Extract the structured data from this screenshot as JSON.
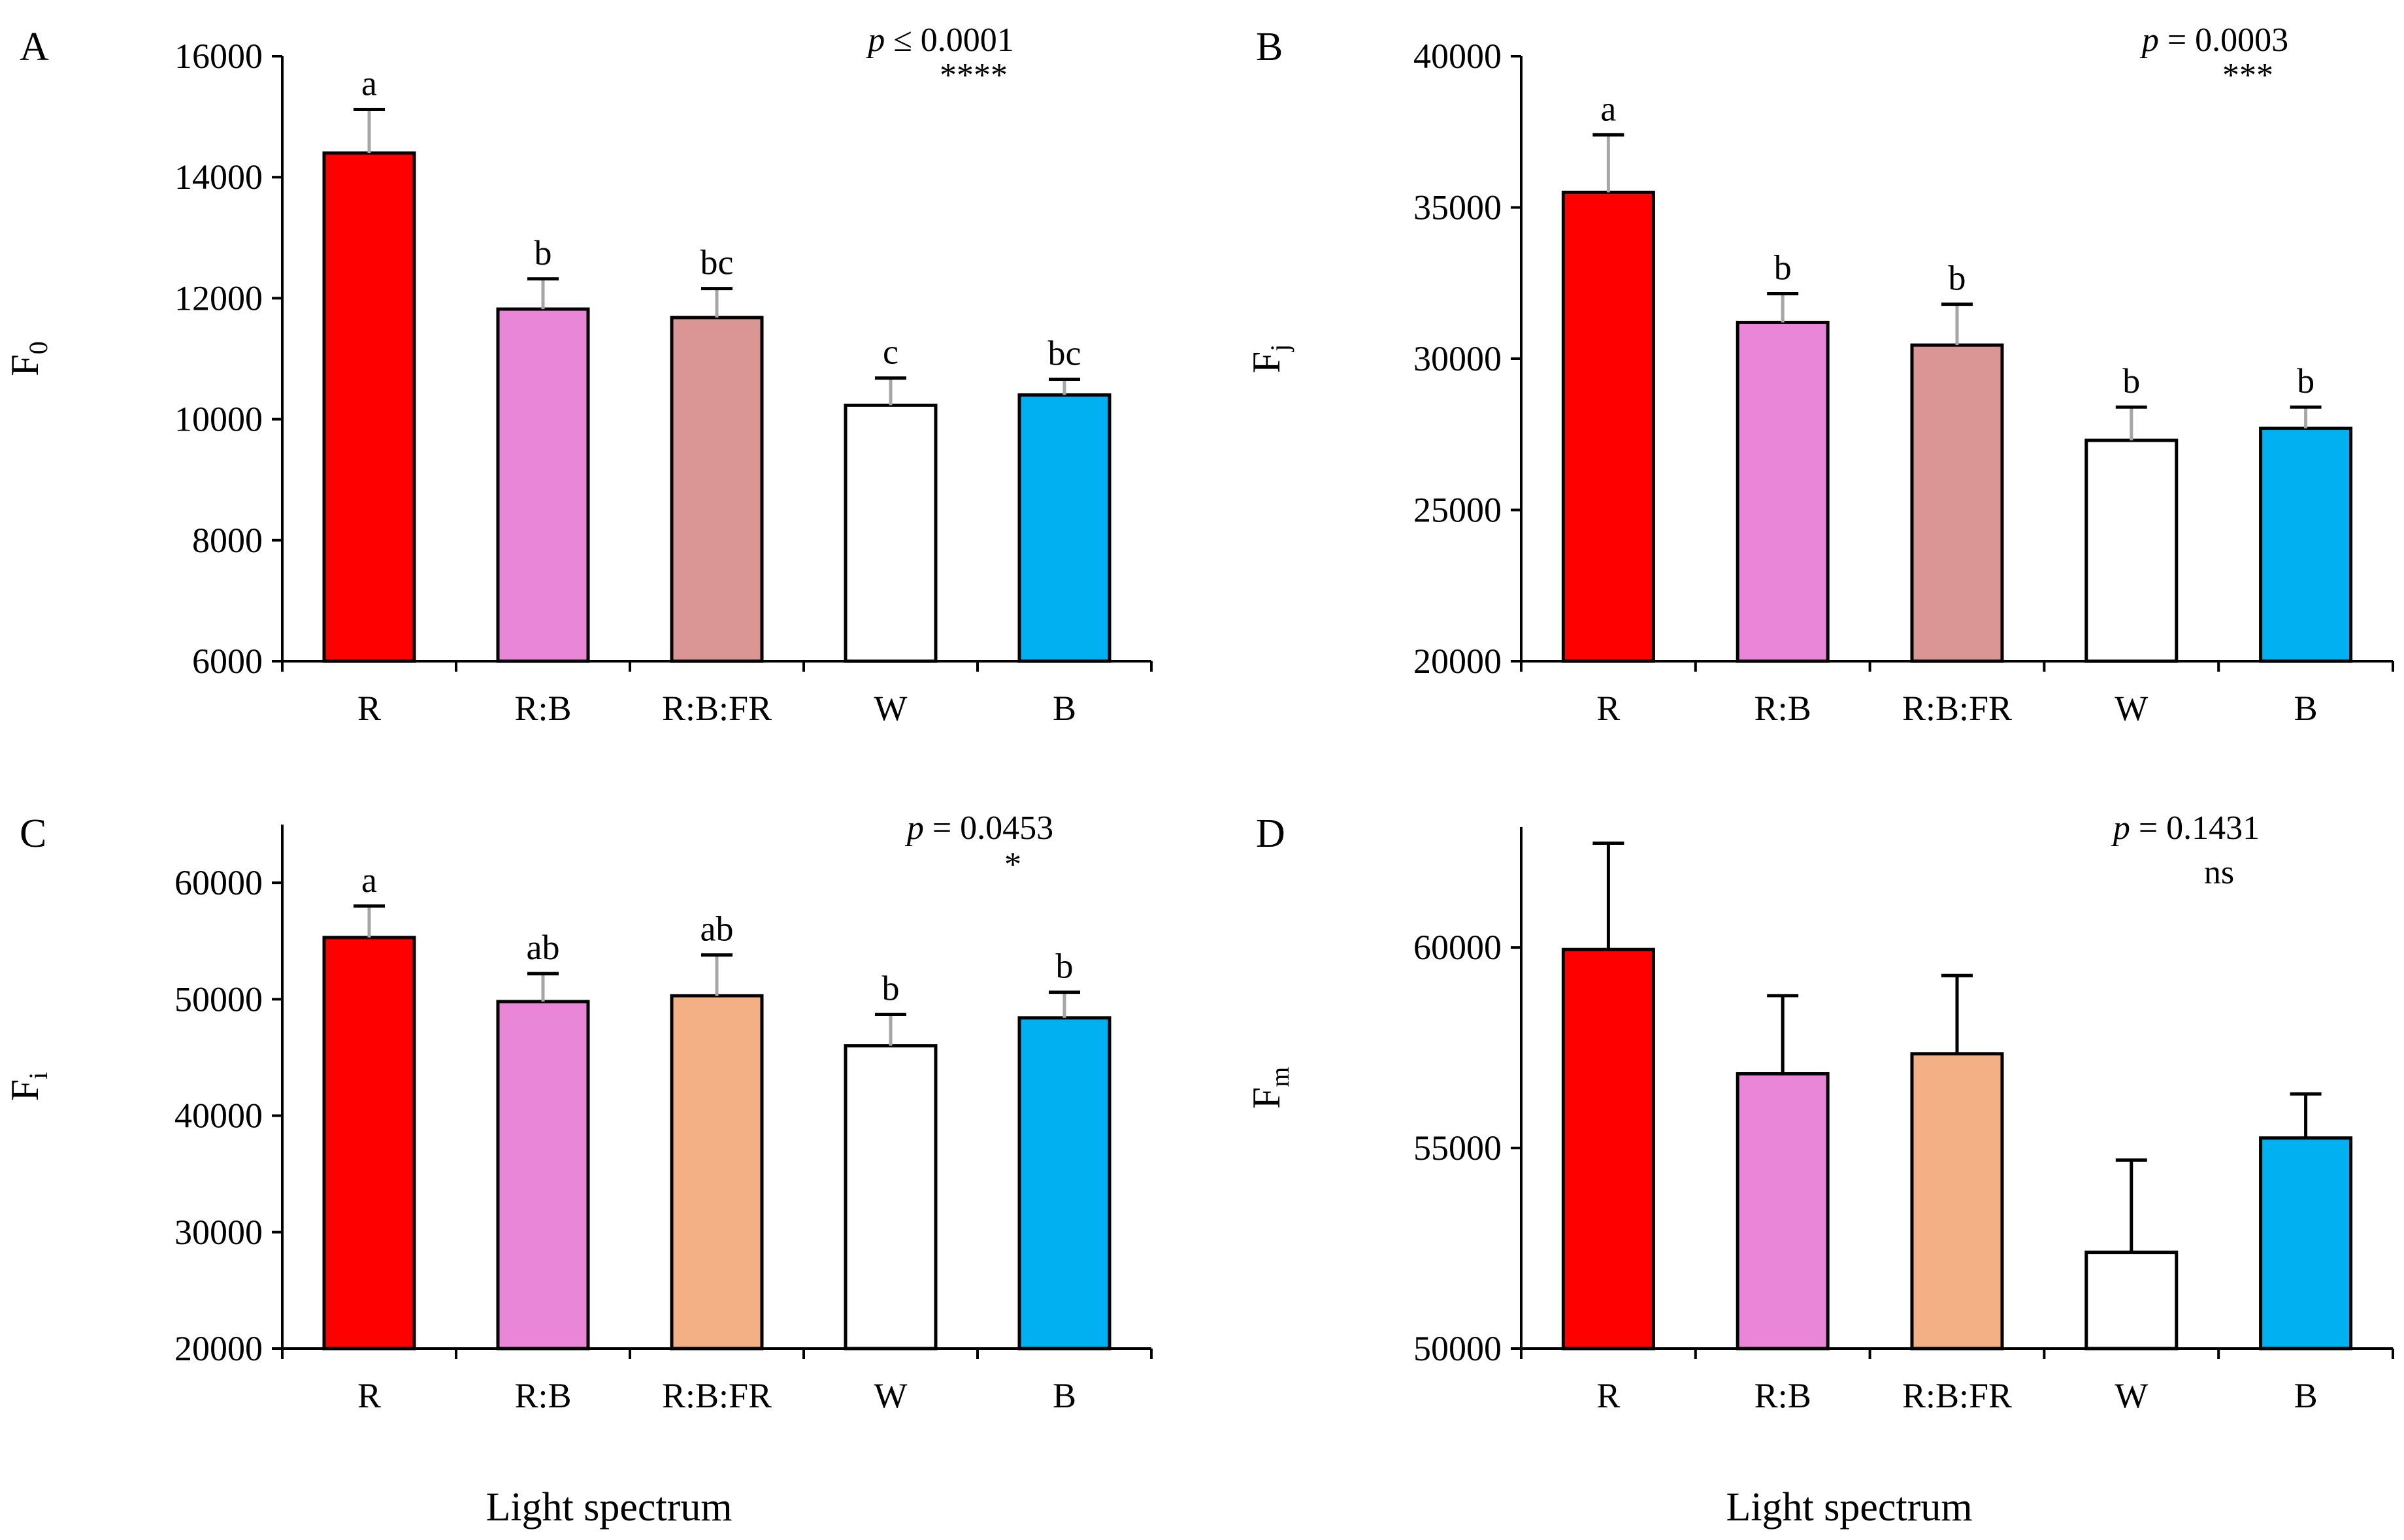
{
  "x_title": "Light spectrum",
  "colors": {
    "R": "#ff0000",
    "R:B": "#ea86d8",
    "R:B:FR_A": "#d99694",
    "R:B:FR_C": "#f3b084",
    "W": "#ffffff",
    "B": "#00b0f0",
    "axis": "#000000",
    "errorbar": "#a6a6a6"
  },
  "chart_data": [
    {
      "type": "bar",
      "panel": "A",
      "ylabel_main": "F",
      "ylabel_sub": "0",
      "categories": [
        "R",
        "R:B",
        "R:B:FR",
        "W",
        "B"
      ],
      "values": [
        14400,
        11820,
        11680,
        10230,
        10400
      ],
      "errors": [
        720,
        500,
        480,
        450,
        260
      ],
      "letters": [
        "a",
        "b",
        "bc",
        "c",
        "bc"
      ],
      "bar_colors": [
        "#ff0000",
        "#ea86d8",
        "#d99694",
        "#ffffff",
        "#00b0f0"
      ],
      "error_color": "#a6a6a6",
      "ylim": [
        6000,
        16000
      ],
      "yticks": [
        6000,
        8000,
        10000,
        12000,
        14000,
        16000
      ],
      "p_prefix": "p",
      "p_text": " ≤ 0.0001",
      "p_stars": "****"
    },
    {
      "type": "bar",
      "panel": "B",
      "ylabel_main": "F",
      "ylabel_sub": "j",
      "categories": [
        "R",
        "R:B",
        "R:B:FR",
        "W",
        "B"
      ],
      "values": [
        35500,
        31200,
        30450,
        27300,
        27700
      ],
      "errors": [
        1900,
        950,
        1350,
        1100,
        700
      ],
      "letters": [
        "a",
        "b",
        "b",
        "b",
        "b"
      ],
      "bar_colors": [
        "#ff0000",
        "#ea86d8",
        "#d99694",
        "#ffffff",
        "#00b0f0"
      ],
      "error_color": "#a6a6a6",
      "ylim": [
        20000,
        40000
      ],
      "yticks": [
        20000,
        25000,
        30000,
        35000,
        40000
      ],
      "p_prefix": "p",
      "p_text": " = 0.0003",
      "p_stars": "***"
    },
    {
      "type": "bar",
      "panel": "C",
      "ylabel_main": "F",
      "ylabel_sub": "i",
      "categories": [
        "R",
        "R:B",
        "R:B:FR",
        "W",
        "B"
      ],
      "values": [
        55300,
        49800,
        50300,
        46000,
        48400
      ],
      "errors": [
        2700,
        2400,
        3500,
        2700,
        2200
      ],
      "letters": [
        "a",
        "ab",
        "ab",
        "b",
        "b"
      ],
      "bar_colors": [
        "#ff0000",
        "#ea86d8",
        "#f3b084",
        "#ffffff",
        "#00b0f0"
      ],
      "error_color": "#a6a6a6",
      "ylim": [
        20000,
        65000
      ],
      "yticks": [
        20000,
        30000,
        40000,
        50000,
        60000
      ],
      "p_prefix": "p",
      "p_text": " = 0.0453",
      "p_stars": "*"
    },
    {
      "type": "bar",
      "panel": "D",
      "ylabel_main": "F",
      "ylabel_sub": "m",
      "categories": [
        "R",
        "R:B",
        "R:B:FR",
        "W",
        "B"
      ],
      "values": [
        59950,
        56850,
        57350,
        52400,
        55250
      ],
      "errors": [
        2650,
        1950,
        1950,
        2300,
        1100
      ],
      "letters": [
        "",
        "",
        "",
        "",
        ""
      ],
      "bar_colors": [
        "#ff0000",
        "#ea86d8",
        "#f3b084",
        "#ffffff",
        "#00b0f0"
      ],
      "error_color": "#000000",
      "ylim": [
        50000,
        63000
      ],
      "yticks": [
        50000,
        55000,
        60000
      ],
      "p_prefix": "p",
      "p_text": " = 0.1431",
      "p_stars": "ns"
    }
  ]
}
